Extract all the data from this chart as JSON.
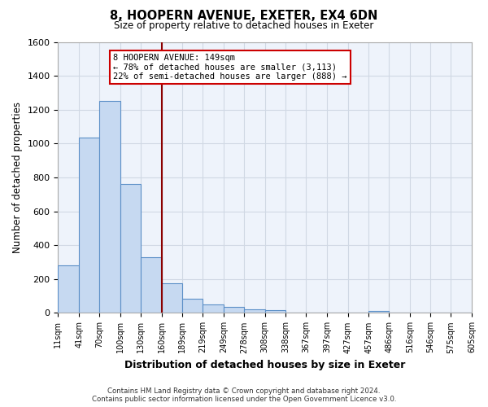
{
  "title": "8, HOOPERN AVENUE, EXETER, EX4 6DN",
  "subtitle": "Size of property relative to detached houses in Exeter",
  "xlabel": "Distribution of detached houses by size in Exeter",
  "ylabel": "Number of detached properties",
  "bin_edges": [
    11,
    41,
    70,
    100,
    130,
    160,
    189,
    219,
    249,
    278,
    308,
    338,
    367,
    397,
    427,
    457,
    486,
    516,
    546,
    575,
    605
  ],
  "bar_heights": [
    280,
    1035,
    1250,
    760,
    330,
    175,
    85,
    50,
    38,
    22,
    15,
    0,
    0,
    0,
    0,
    10,
    0,
    0,
    0,
    0
  ],
  "bar_color": "#c6d9f1",
  "bar_edge_color": "#5b8fc7",
  "vline_x": 160,
  "vline_color": "#8b0000",
  "ylim": [
    0,
    1600
  ],
  "yticks": [
    0,
    200,
    400,
    600,
    800,
    1000,
    1200,
    1400,
    1600
  ],
  "annotation_title": "8 HOOPERN AVENUE: 149sqm",
  "annotation_line1": "← 78% of detached houses are smaller (3,113)",
  "annotation_line2": "22% of semi-detached houses are larger (888) →",
  "annotation_box_color": "#ffffff",
  "annotation_box_edge": "#cc0000",
  "footnote1": "Contains HM Land Registry data © Crown copyright and database right 2024.",
  "footnote2": "Contains public sector information licensed under the Open Government Licence v3.0.",
  "bg_color": "#ffffff",
  "grid_color": "#d0d8e4",
  "tick_labels": [
    "11sqm",
    "41sqm",
    "70sqm",
    "100sqm",
    "130sqm",
    "160sqm",
    "189sqm",
    "219sqm",
    "249sqm",
    "278sqm",
    "308sqm",
    "338sqm",
    "367sqm",
    "397sqm",
    "427sqm",
    "457sqm",
    "486sqm",
    "516sqm",
    "546sqm",
    "575sqm",
    "605sqm"
  ]
}
